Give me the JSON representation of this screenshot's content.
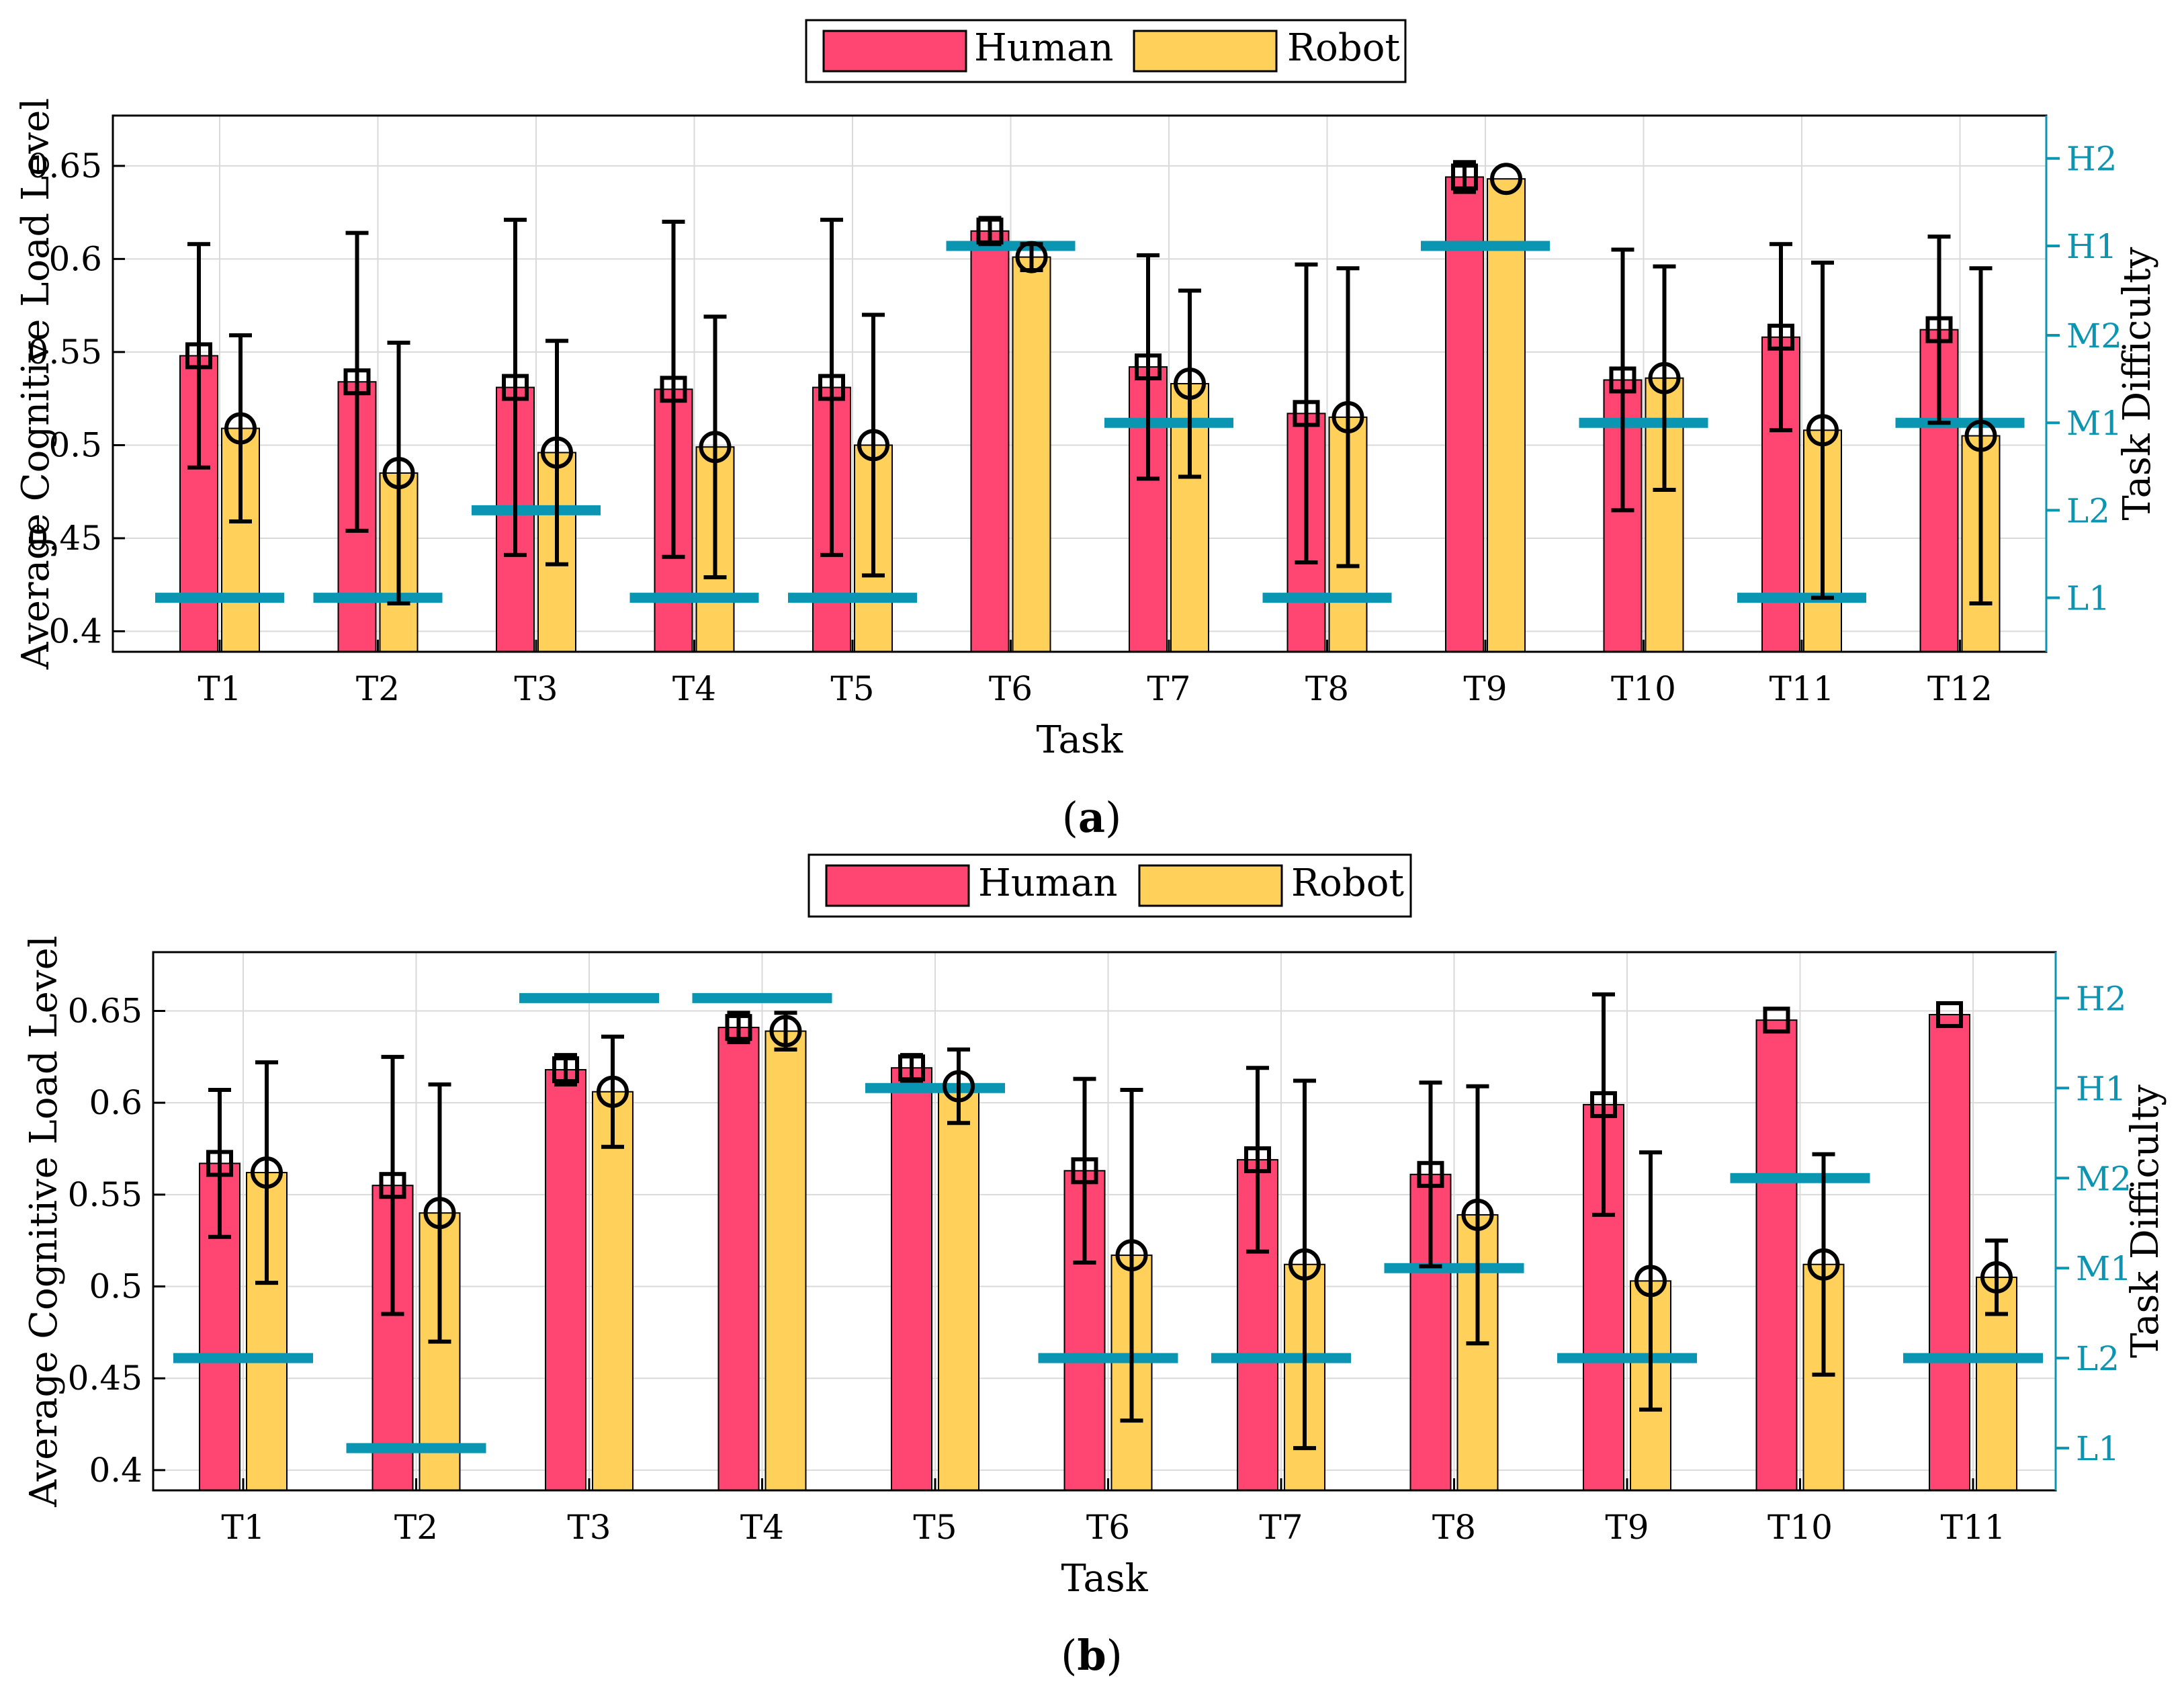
{
  "colors": {
    "human": "#FF4571",
    "robot": "#FFD05A",
    "difficulty": "#0A95B3",
    "axis": "#000000",
    "grid": "#DADADA"
  },
  "chart_data": [
    {
      "type": "bar",
      "panel": "(a)",
      "panel_letter": "a",
      "legend": [
        "Human",
        "Robot"
      ],
      "legend_placement": "top-center",
      "xlabel": "Task",
      "ylabel": "Average Cognitive Load Level",
      "ylabel_right": "Task Difficulty",
      "ylim": [
        0.389,
        0.677
      ],
      "yticks": [
        0.4,
        0.45,
        0.5,
        0.55,
        0.6,
        0.65
      ],
      "ytick_labels": [
        "0.4",
        "0.45",
        "0.5",
        "0.55",
        "0.6",
        "0.65"
      ],
      "right_ticks": [
        "L1",
        "L2",
        "M1",
        "M2",
        "H1",
        "H2"
      ],
      "right_tick_values": [
        0.418,
        0.465,
        0.512,
        0.559,
        0.607,
        0.654
      ],
      "grid": true,
      "categories": [
        "T1",
        "T2",
        "T3",
        "T4",
        "T5",
        "T6",
        "T7",
        "T8",
        "T9",
        "T10",
        "T11",
        "T12"
      ],
      "series": [
        {
          "name": "Human",
          "marker": "square",
          "values": [
            0.548,
            0.534,
            0.531,
            0.53,
            0.531,
            0.615,
            0.542,
            0.517,
            0.644,
            0.535,
            0.558,
            0.562
          ],
          "err_low": [
            0.488,
            0.454,
            0.441,
            0.44,
            0.441,
            0.608,
            0.482,
            0.437,
            0.636,
            0.465,
            0.508,
            0.512
          ],
          "err_high": [
            0.608,
            0.614,
            0.621,
            0.62,
            0.621,
            0.622,
            0.602,
            0.597,
            0.652,
            0.605,
            0.608,
            0.612
          ]
        },
        {
          "name": "Robot",
          "marker": "circle",
          "values": [
            0.509,
            0.485,
            0.496,
            0.499,
            0.5,
            0.601,
            0.533,
            0.515,
            0.643,
            0.536,
            0.508,
            0.505
          ],
          "err_low": [
            0.459,
            0.415,
            0.436,
            0.429,
            0.43,
            0.594,
            0.483,
            0.435,
            0.643,
            0.476,
            0.418,
            0.415
          ],
          "err_high": [
            0.559,
            0.555,
            0.556,
            0.569,
            0.57,
            0.608,
            0.583,
            0.595,
            0.643,
            0.596,
            0.598,
            0.595
          ]
        }
      ],
      "difficulty": [
        "L1",
        "L1",
        "L2",
        "L1",
        "L1",
        "H1",
        "M1",
        "L1",
        "H1",
        "M1",
        "L1",
        "M1"
      ]
    },
    {
      "type": "bar",
      "panel": "(b)",
      "panel_letter": "b",
      "legend": [
        "Human",
        "Robot"
      ],
      "legend_placement": "top-center",
      "xlabel": "Task",
      "ylabel": "Average Cognitive Load Level",
      "ylabel_right": "Task Difficulty",
      "ylim": [
        0.389,
        0.682
      ],
      "yticks": [
        0.4,
        0.45,
        0.5,
        0.55,
        0.6,
        0.65
      ],
      "ytick_labels": [
        "0.4",
        "0.45",
        "0.5",
        "0.55",
        "0.6",
        "0.65"
      ],
      "right_ticks": [
        "L1",
        "L2",
        "M1",
        "M2",
        "H1",
        "H2"
      ],
      "right_tick_values": [
        0.412,
        0.461,
        0.51,
        0.559,
        0.608,
        0.657
      ],
      "grid": true,
      "categories": [
        "T1",
        "T2",
        "T3",
        "T4",
        "T5",
        "T6",
        "T7",
        "T8",
        "T9",
        "T10",
        "T11"
      ],
      "series": [
        {
          "name": "Human",
          "marker": "square",
          "values": [
            0.567,
            0.555,
            0.618,
            0.641,
            0.619,
            0.563,
            0.569,
            0.561,
            0.599,
            0.645,
            0.648
          ],
          "err_low": [
            0.527,
            0.485,
            0.61,
            0.633,
            0.612,
            0.513,
            0.519,
            0.511,
            0.539,
            0.645,
            0.648
          ],
          "err_high": [
            0.607,
            0.625,
            0.626,
            0.649,
            0.626,
            0.613,
            0.619,
            0.611,
            0.659,
            0.645,
            0.648
          ]
        },
        {
          "name": "Robot",
          "marker": "circle",
          "values": [
            0.562,
            0.54,
            0.606,
            0.639,
            0.609,
            0.517,
            0.512,
            0.539,
            0.503,
            0.512,
            0.505
          ],
          "err_low": [
            0.502,
            0.47,
            0.576,
            0.629,
            0.589,
            0.427,
            0.412,
            0.469,
            0.433,
            0.452,
            0.485
          ],
          "err_high": [
            0.622,
            0.61,
            0.636,
            0.649,
            0.629,
            0.607,
            0.612,
            0.609,
            0.573,
            0.572,
            0.525
          ]
        }
      ],
      "difficulty": [
        "L2",
        "L1",
        "H2",
        "H2",
        "H1",
        "L2",
        "L2",
        "M1",
        "L2",
        "M2",
        "L2"
      ]
    }
  ]
}
